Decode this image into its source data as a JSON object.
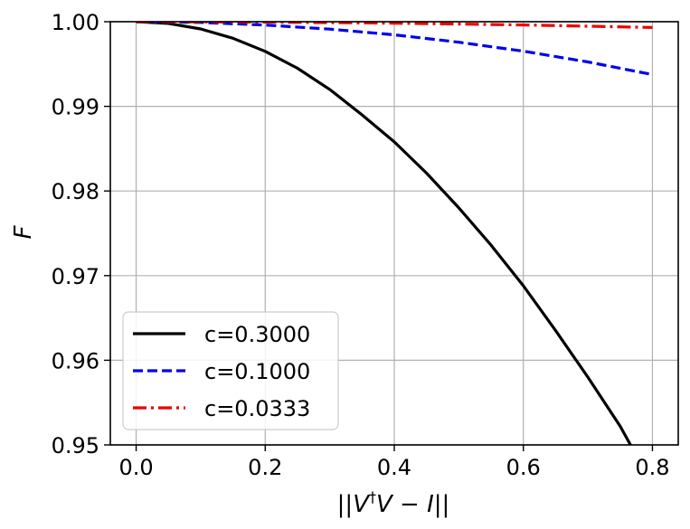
{
  "chart_data": {
    "type": "line",
    "xlabel": "||V†V − I||",
    "ylabel": "F",
    "xlim": [
      -0.04,
      0.84
    ],
    "ylim": [
      0.95,
      1.0
    ],
    "grid": true,
    "legend_position": "lower-left",
    "x_ticks": [
      0.0,
      0.2,
      0.4,
      0.6,
      0.8
    ],
    "x_tick_labels": [
      "0.0",
      "0.2",
      "0.4",
      "0.6",
      "0.8"
    ],
    "y_ticks": [
      0.95,
      0.96,
      0.97,
      0.98,
      0.99,
      1.0
    ],
    "y_tick_labels": [
      "0.95",
      "0.96",
      "0.97",
      "0.98",
      "0.99",
      "1.00"
    ],
    "series": [
      {
        "name": "c=0.3000",
        "color": "#000000",
        "style": "solid",
        "x": [
          0.0,
          0.05,
          0.1,
          0.15,
          0.2,
          0.25,
          0.3,
          0.35,
          0.4,
          0.45,
          0.5,
          0.55,
          0.6,
          0.65,
          0.7,
          0.75,
          0.766
        ],
        "y": [
          1.0,
          0.9998,
          0.99915,
          0.99805,
          0.9965,
          0.9945,
          0.992,
          0.989,
          0.9858,
          0.9821,
          0.978,
          0.9736,
          0.9688,
          0.9635,
          0.958,
          0.9522,
          0.95
        ]
      },
      {
        "name": "c=0.1000",
        "color": "#0000ee",
        "style": "dashed",
        "x": [
          0.0,
          0.1,
          0.2,
          0.3,
          0.4,
          0.5,
          0.6,
          0.7,
          0.8
        ],
        "y": [
          1.0,
          0.99991,
          0.99961,
          0.99912,
          0.99845,
          0.99758,
          0.99652,
          0.99525,
          0.99375
        ]
      },
      {
        "name": "c=0.0333",
        "color": "#ee0000",
        "style": "dashdot",
        "x": [
          0.0,
          0.2,
          0.4,
          0.6,
          0.8
        ],
        "y": [
          1.0,
          0.99996,
          0.99983,
          0.99962,
          0.99932
        ]
      }
    ]
  }
}
